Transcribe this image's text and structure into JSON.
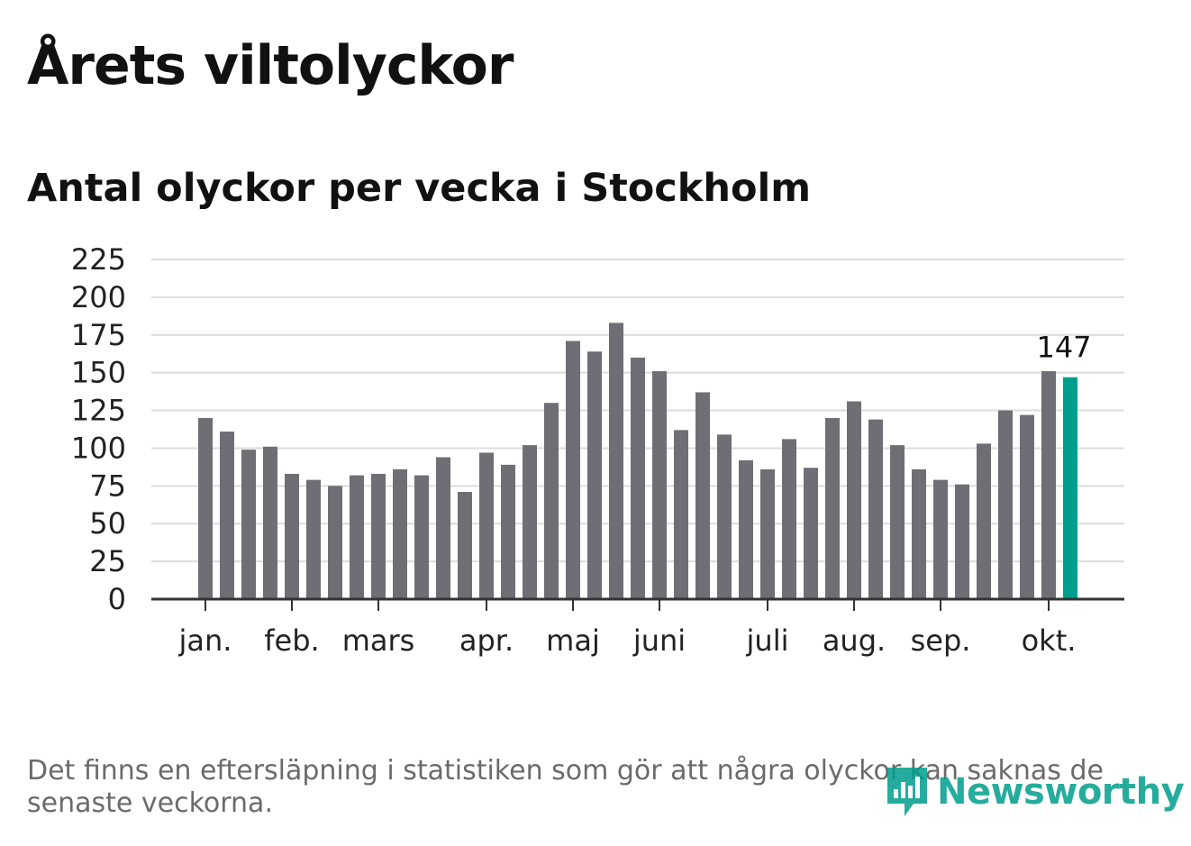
{
  "title": "Årets viltolyckor",
  "subtitle": "Antal olyckor per vecka i Stockholm",
  "footnote": "Det finns en eftersläpning i statistiken som gör att några olyckor kan saknas de senaste veckorna.",
  "brand": {
    "name": "Newsworthy",
    "color": "#009e8d"
  },
  "chart_data": {
    "type": "bar",
    "title": "Antal olyckor per vecka i Stockholm",
    "ylim": [
      0,
      225
    ],
    "yticks": [
      0,
      25,
      50,
      75,
      100,
      125,
      150,
      175,
      200,
      225
    ],
    "grid": true,
    "values": [
      120,
      111,
      99,
      101,
      83,
      79,
      75,
      82,
      83,
      86,
      82,
      94,
      71,
      97,
      89,
      102,
      130,
      171,
      164,
      183,
      160,
      151,
      112,
      137,
      109,
      92,
      86,
      106,
      87,
      120,
      131,
      119,
      102,
      86,
      79,
      76,
      103,
      125,
      122,
      151,
      147
    ],
    "month_labels": [
      {
        "label": "jan.",
        "week": 0
      },
      {
        "label": "feb.",
        "week": 4
      },
      {
        "label": "mars",
        "week": 8
      },
      {
        "label": "apr.",
        "week": 13
      },
      {
        "label": "maj",
        "week": 17
      },
      {
        "label": "juni",
        "week": 21
      },
      {
        "label": "juli",
        "week": 26
      },
      {
        "label": "aug.",
        "week": 30
      },
      {
        "label": "sep.",
        "week": 34
      },
      {
        "label": "okt.",
        "week": 39
      }
    ],
    "highlight_index": 40,
    "highlight_label": "147",
    "bar_color": "#6e6e74",
    "highlight_color": "#009e8d",
    "grid_color": "#dcdcdc",
    "axis_color": "#333333"
  }
}
